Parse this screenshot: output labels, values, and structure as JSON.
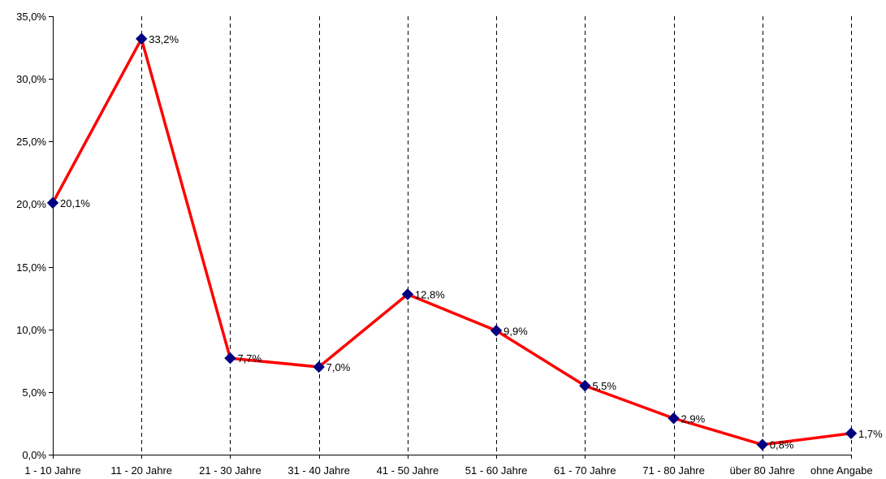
{
  "chart_data": {
    "type": "line",
    "title": "",
    "xlabel": "",
    "ylabel": "",
    "categories": [
      "1 - 10 Jahre",
      "11 - 20 Jahre",
      "21 - 30 Jahre",
      "31 - 40 Jahre",
      "41 - 50 Jahre",
      "51 - 60 Jahre",
      "61 - 70 Jahre",
      "71 - 80 Jahre",
      "über 80 Jahre",
      "ohne Angabe"
    ],
    "series": [
      {
        "values": [
          20.1,
          33.2,
          7.7,
          7.0,
          12.8,
          9.9,
          5.5,
          2.9,
          0.8,
          1.7
        ],
        "data_labels": [
          "20,1%",
          "33,2%",
          "7,7%",
          "7,0%",
          "12,8%",
          "9,9%",
          "5,5%",
          "2,9%",
          "0,8%",
          "1,7%"
        ],
        "line_color": "#ff0000",
        "marker_color": "#000080",
        "marker": "diamond"
      }
    ],
    "ylim": [
      0,
      35
    ],
    "y_ticks": [
      0,
      5,
      10,
      15,
      20,
      25,
      30,
      35
    ],
    "y_tick_labels": [
      "0,0%",
      "5,0%",
      "10,0%",
      "15,0%",
      "20,0%",
      "25,0%",
      "30,0%",
      "35,0%"
    ],
    "grid": "vertical dashed lines at categories",
    "legend": "none"
  }
}
